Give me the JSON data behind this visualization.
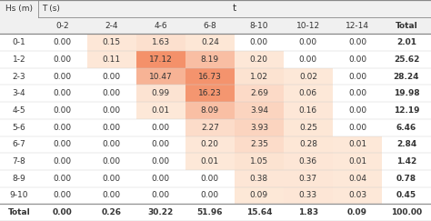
{
  "col_headers": [
    "0-2",
    "2-4",
    "4-6",
    "6-8",
    "8-10",
    "10-12",
    "12-14",
    "Total"
  ],
  "row_headers": [
    "0-1",
    "1-2",
    "2-3",
    "3-4",
    "4-5",
    "5-6",
    "6-7",
    "7-8",
    "8-9",
    "9-10",
    "Total"
  ],
  "table_data": [
    [
      0.0,
      0.15,
      1.63,
      0.24,
      0.0,
      0.0,
      0.0,
      2.01
    ],
    [
      0.0,
      0.11,
      17.12,
      8.19,
      0.2,
      0.0,
      0.0,
      25.62
    ],
    [
      0.0,
      0.0,
      10.47,
      16.73,
      1.02,
      0.02,
      0.0,
      28.24
    ],
    [
      0.0,
      0.0,
      0.99,
      16.23,
      2.69,
      0.06,
      0.0,
      19.98
    ],
    [
      0.0,
      0.0,
      0.01,
      8.09,
      3.94,
      0.16,
      0.0,
      12.19
    ],
    [
      0.0,
      0.0,
      0.0,
      2.27,
      3.93,
      0.25,
      0.0,
      6.46
    ],
    [
      0.0,
      0.0,
      0.0,
      0.2,
      2.35,
      0.28,
      0.01,
      2.84
    ],
    [
      0.0,
      0.0,
      0.0,
      0.01,
      1.05,
      0.36,
      0.01,
      1.42
    ],
    [
      0.0,
      0.0,
      0.0,
      0.0,
      0.38,
      0.37,
      0.04,
      0.78
    ],
    [
      0.0,
      0.0,
      0.0,
      0.0,
      0.09,
      0.33,
      0.03,
      0.45
    ],
    [
      0.0,
      0.26,
      30.22,
      51.96,
      15.64,
      1.83,
      0.09,
      100.0
    ]
  ],
  "title_t": "t",
  "title_T": "T (s)",
  "title_Hs": "Hs (m)",
  "bg_color": "#ffffff",
  "header_bg": "#f0f0f0",
  "max_val": 17.12,
  "color_low": [
    253,
    232,
    216
  ],
  "color_high": [
    244,
    145,
    106
  ]
}
